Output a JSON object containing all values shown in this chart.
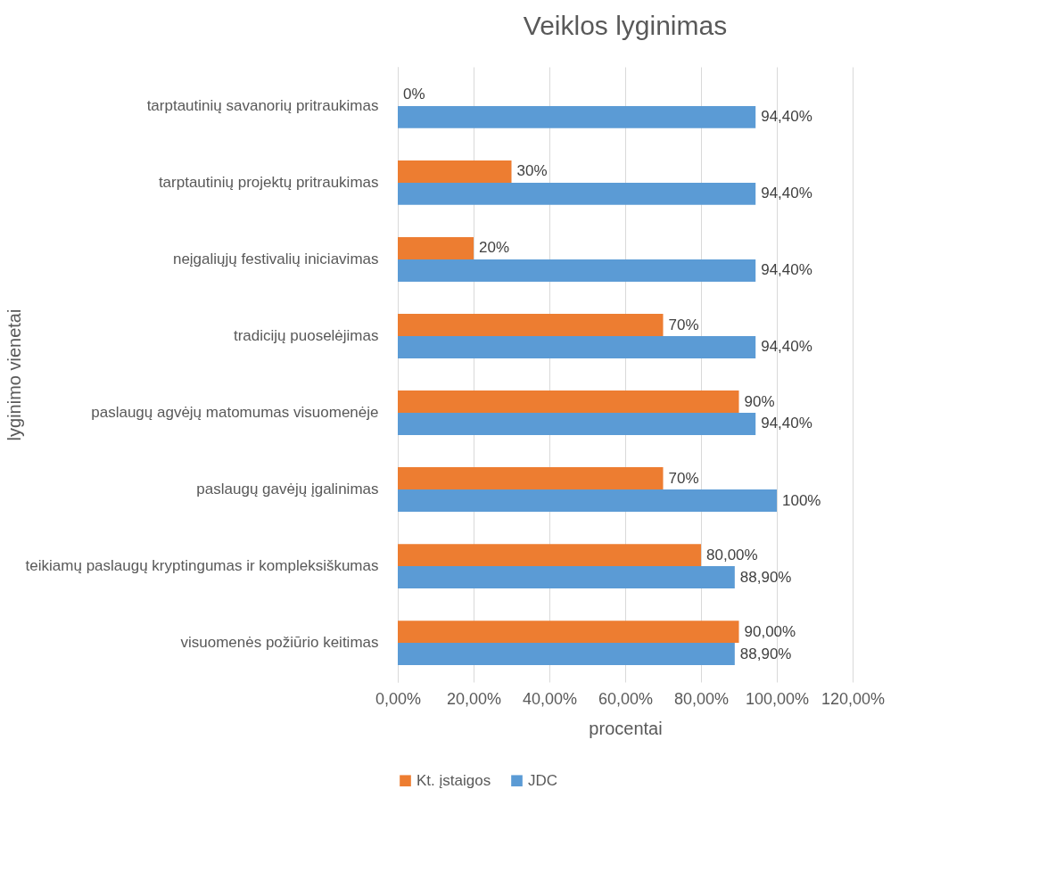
{
  "chart_data": {
    "type": "bar",
    "orientation": "horizontal",
    "title": "Veiklos lyginimas",
    "xlabel": "procentai",
    "ylabel": "lyginimo vienetai",
    "categories": [
      "tarptautinių savanorių pritraukimas",
      "tarptautinių projektų pritraukimas",
      "neįgaliųjų festivalių iniciavimas",
      "tradicijų puoselėjimas",
      "paslaugų agvėjų matomumas visuomenėje",
      "paslaugų gavėjų įgalinimas",
      "teikiamų paslaugų kryptingumas ir kompleksiškumas",
      "visuomenės požiūrio keitimas"
    ],
    "series": [
      {
        "name": "Kt. įstaigos",
        "color": "#ed7d31",
        "values": [
          0,
          30,
          20,
          70,
          90,
          70,
          80,
          90
        ],
        "value_labels": [
          "0%",
          "30%",
          "20%",
          "70%",
          "90%",
          "70%",
          "80,00%",
          "90,00%"
        ]
      },
      {
        "name": "JDC",
        "color": "#5b9bd5",
        "values": [
          94.4,
          94.4,
          94.4,
          94.4,
          94.4,
          100,
          88.9,
          88.9
        ],
        "value_labels": [
          "94,40%",
          "94,40%",
          "94,40%",
          "94,40%",
          "94,40%",
          "100%",
          "88,90%",
          "88,90%"
        ]
      }
    ],
    "xlim": [
      0,
      120
    ],
    "xticks": [
      {
        "value": 0,
        "label": "0,00%"
      },
      {
        "value": 20,
        "label": "20,00%"
      },
      {
        "value": 40,
        "label": "40,00%"
      },
      {
        "value": 60,
        "label": "60,00%"
      },
      {
        "value": 80,
        "label": "80,00%"
      },
      {
        "value": 100,
        "label": "100,00%"
      },
      {
        "value": 120,
        "label": "120,00%"
      }
    ],
    "grid": "x",
    "legend": "bottom"
  }
}
